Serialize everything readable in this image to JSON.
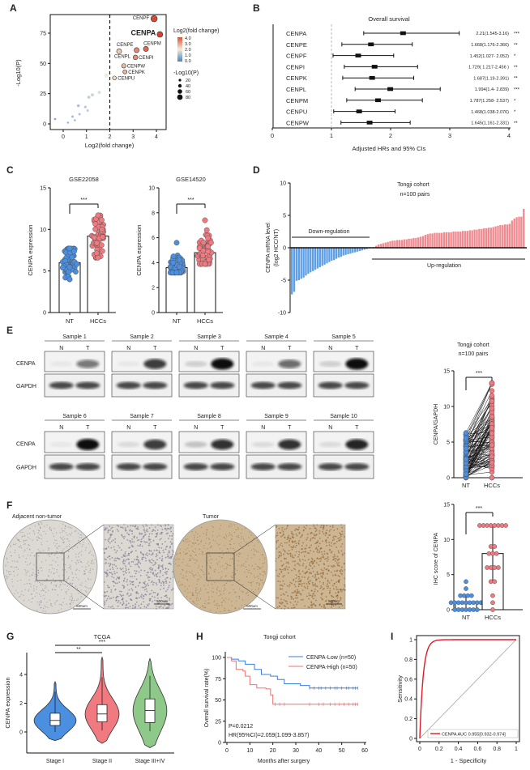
{
  "colors": {
    "blue": "#4a8fe0",
    "red": "#f07a80",
    "green": "#8fc98a",
    "km_low": "#3a7fe0",
    "km_high": "#f07070",
    "roc": "#e01a2a",
    "highlight": "#e0101e"
  },
  "panel_labels": [
    "A",
    "B",
    "C",
    "D",
    "E",
    "F",
    "G",
    "H",
    "I"
  ],
  "chart_data": [
    {
      "id": "A",
      "type": "scatter",
      "xlabel": "Log2(fold change)",
      "ylabel": "-Log10(P)",
      "xticks": [
        0,
        1,
        2,
        3,
        4
      ],
      "yticks": [
        0,
        25,
        50,
        75
      ],
      "threshold_x": 2,
      "color_legend": {
        "title": "Log2(fold change)",
        "labels": [
          "4.0",
          "3.0",
          "2.0",
          "1.0",
          "0.0"
        ]
      },
      "size_legend": {
        "title": "-Log10(P)",
        "labels": [
          "20",
          "40",
          "60",
          "80"
        ]
      },
      "points": [
        {
          "label": "CENPF",
          "x": 3.9,
          "y": 87
        },
        {
          "label": "CENPA",
          "x": 4.15,
          "y": 74,
          "highlight": true
        },
        {
          "label": "CENPM",
          "x": 3.55,
          "y": 62
        },
        {
          "label": "CENPE",
          "x": 3.15,
          "y": 61
        },
        {
          "label": "CENPL",
          "x": 2.4,
          "y": 60
        },
        {
          "label": "CENPI",
          "x": 3.1,
          "y": 55
        },
        {
          "label": "CENPW",
          "x": 2.6,
          "y": 48
        },
        {
          "label": "CENPK",
          "x": 2.65,
          "y": 43
        },
        {
          "label": "CENPU",
          "x": 2.2,
          "y": 38
        },
        {
          "x": 1.85,
          "y": 40
        },
        {
          "x": 1.55,
          "y": 26
        },
        {
          "x": 1.25,
          "y": 24
        },
        {
          "x": 1.1,
          "y": 22
        },
        {
          "x": 0.65,
          "y": 15
        },
        {
          "x": 0.95,
          "y": 14
        },
        {
          "x": 1.05,
          "y": 11
        },
        {
          "x": 0.7,
          "y": 8
        },
        {
          "x": 0.4,
          "y": 6
        },
        {
          "x": 0.5,
          "y": 3
        },
        {
          "x": -0.35,
          "y": 4
        },
        {
          "x": 0.2,
          "y": 1
        }
      ]
    },
    {
      "id": "B",
      "type": "forest",
      "title": "Overall survival",
      "xlabel": "Adjusted HRs and 95% CIs",
      "xticks": [
        0,
        1,
        2,
        3,
        4
      ],
      "reference": 1,
      "rows": [
        {
          "gene": "CENPA",
          "hr": 2.21,
          "lo": 1.545,
          "hi": 3.16,
          "text": "2.21(1.545-3.16)",
          "sig": "***"
        },
        {
          "gene": "CENPE",
          "hr": 1.668,
          "lo": 1.176,
          "hi": 2.366,
          "text": "1.668(1.176-2.366)",
          "sig": "**"
        },
        {
          "gene": "CENPF",
          "hr": 1.452,
          "lo": 1.027,
          "hi": 2.052,
          "text": "1.452(1.027- 2.052)",
          "sig": "*"
        },
        {
          "gene": "CENPI",
          "hr": 1.729,
          "lo": 1.217,
          "hi": 2.456,
          "text": "1.729( 1.217-2.456 )",
          "sig": "**"
        },
        {
          "gene": "CENPK",
          "hr": 1.687,
          "lo": 1.19,
          "hi": 2.391,
          "text": "1.687(1.19-2.391)",
          "sig": "**"
        },
        {
          "gene": "CENPL",
          "hr": 1.994,
          "lo": 1.4,
          "hi": 2.839,
          "text": "1.994(1.4- 2.839)",
          "sig": "***"
        },
        {
          "gene": "CENPM",
          "hr": 1.787,
          "lo": 1.258,
          "hi": 2.537,
          "text": "1.787(1.258- 2.537)",
          "sig": "*"
        },
        {
          "gene": "CENPU",
          "hr": 1.468,
          "lo": 1.038,
          "hi": 2.076,
          "text": "1.468(1.038-2.076)",
          "sig": "*"
        },
        {
          "gene": "CENPW",
          "hr": 1.645,
          "lo": 1.161,
          "hi": 2.331,
          "text": "1.645(1.161-2.331)",
          "sig": "**"
        }
      ]
    },
    {
      "id": "C1",
      "type": "bar_scatter",
      "title": "GSE22058",
      "ylabel": "CENPA expression",
      "yticks": [
        0,
        5,
        10,
        15
      ],
      "ylim": [
        0,
        15
      ],
      "categories": [
        "NT",
        "HCCs"
      ],
      "sig": "***",
      "means": [
        6.0,
        9.2
      ],
      "ranges": [
        [
          4.0,
          7.7
        ],
        [
          6.6,
          11.7
        ]
      ]
    },
    {
      "id": "C2",
      "type": "bar_scatter",
      "title": "GSE14520",
      "ylabel": "CENPA expression",
      "yticks": [
        0,
        2,
        4,
        6,
        8,
        10
      ],
      "ylim": [
        0,
        10
      ],
      "categories": [
        "NT",
        "HCCs"
      ],
      "sig": "***",
      "means": [
        3.6,
        4.8
      ],
      "ranges": [
        [
          3.2,
          5.6
        ],
        [
          3.9,
          7.4
        ]
      ]
    },
    {
      "id": "D",
      "type": "bar",
      "title": "Tongji cohort",
      "subtitle": "n=100 pairs",
      "ylabel": "CENPA mRNA level",
      "ylabel2": "(log2 HCC/NT)",
      "yticks": [
        -10,
        -5,
        0,
        5,
        10
      ],
      "ylim": [
        -10,
        10
      ],
      "annotations": [
        "Down-regulation",
        "Up-regulation"
      ],
      "values": [
        -7.2,
        -6.8,
        -5.1,
        -5.0,
        -4.8,
        -4.6,
        -4.3,
        -4.0,
        -3.8,
        -3.6,
        -3.4,
        -3.2,
        -3.0,
        -2.8,
        -2.6,
        -2.4,
        -2.2,
        -2.0,
        -1.9,
        -1.7,
        -1.5,
        -1.4,
        -1.2,
        -1.1,
        -1.0,
        -0.9,
        -0.8,
        -0.7,
        -0.6,
        -0.5,
        -0.4,
        -0.3,
        -0.2,
        -0.1,
        -0.05,
        0.1,
        0.3,
        0.5,
        0.6,
        0.7,
        0.8,
        0.9,
        1.0,
        1.1,
        1.1,
        1.2,
        1.2,
        1.2,
        1.3,
        1.3,
        1.4,
        1.4,
        1.5,
        1.5,
        1.6,
        1.7,
        1.8,
        2.0,
        2.1,
        2.2,
        2.2,
        2.3,
        2.3,
        2.3,
        2.3,
        2.4,
        2.4,
        2.4,
        2.4,
        2.5,
        2.5,
        2.5,
        2.5,
        2.6,
        2.6,
        2.6,
        2.7,
        2.7,
        2.8,
        2.8,
        2.9,
        2.9,
        3.0,
        3.0,
        3.1,
        3.1,
        3.2,
        3.3,
        3.4,
        3.5,
        3.5,
        3.6,
        3.6,
        3.7,
        4.2,
        4.5,
        4.7,
        4.8,
        4.8,
        6.0
      ]
    },
    {
      "id": "E_blot",
      "type": "western_blot",
      "rows": [
        "CENPA",
        "GAPDH"
      ],
      "lanes": [
        "N",
        "T"
      ],
      "samples": [
        {
          "name": "Sample 1",
          "cenpa": [
            0.05,
            0.55
          ]
        },
        {
          "name": "Sample 2",
          "cenpa": [
            0.05,
            0.8
          ]
        },
        {
          "name": "Sample 3",
          "cenpa": [
            0.15,
            1.0
          ]
        },
        {
          "name": "Sample 4",
          "cenpa": [
            0.05,
            0.6
          ]
        },
        {
          "name": "Sample 5",
          "cenpa": [
            0.15,
            1.0
          ]
        },
        {
          "name": "Sample 6",
          "cenpa": [
            0.05,
            1.0
          ]
        },
        {
          "name": "Sample 7",
          "cenpa": [
            0.1,
            0.8
          ]
        },
        {
          "name": "Sample 8",
          "cenpa": [
            0.2,
            0.85
          ]
        },
        {
          "name": "Sample 9",
          "cenpa": [
            0.1,
            0.85
          ]
        },
        {
          "name": "Sample 10",
          "cenpa": [
            0.1,
            0.9
          ]
        }
      ]
    },
    {
      "id": "E_paired",
      "type": "paired_scatter",
      "title": "Tongji cohort",
      "subtitle": "n=100 pairs",
      "ylabel": "CENPA/GAPDH",
      "yticks": [
        0,
        5,
        10,
        15
      ],
      "ylim": [
        0,
        15
      ],
      "categories": [
        "NT",
        "HCCs"
      ],
      "sig": "***",
      "ranges": [
        [
          0,
          6.3
        ],
        [
          0,
          13.3
        ]
      ]
    },
    {
      "id": "F_images",
      "type": "ihc",
      "labels": [
        "Adjacent non-tumor",
        "Tumor"
      ],
      "scale_bar": "500um"
    },
    {
      "id": "F_bar",
      "type": "bar_scatter",
      "ylabel": "IHC score of CENPA",
      "yticks": [
        0,
        5,
        10,
        15
      ],
      "ylim": [
        0,
        15
      ],
      "categories": [
        "NT",
        "HCCs"
      ],
      "sig": "***",
      "means": [
        1.0,
        8.0
      ],
      "values": [
        [
          0,
          0,
          0,
          0,
          0,
          0,
          0,
          1,
          1,
          1,
          1,
          1,
          1,
          1,
          1,
          1,
          2,
          2,
          2,
          2,
          3,
          4
        ],
        [
          12,
          12,
          12,
          12,
          12,
          12,
          12,
          12,
          9,
          9,
          8,
          8,
          8,
          6,
          6,
          6,
          6,
          4,
          4,
          2,
          1,
          0
        ]
      ]
    },
    {
      "id": "G",
      "type": "violin",
      "title": "TCGA",
      "ylabel": "CENPA expression",
      "yticks": [
        0,
        2,
        4
      ],
      "categories": [
        "Stage I",
        "Stage II",
        "Stage III+IV"
      ],
      "box": [
        {
          "q1": 0.45,
          "median": 0.8,
          "q3": 1.3,
          "min": 0,
          "max": 2.8,
          "vmin": -0.6,
          "vmax": 3.5
        },
        {
          "q1": 0.7,
          "median": 1.25,
          "q3": 1.9,
          "min": 0.1,
          "max": 3.8,
          "vmin": -0.8,
          "vmax": 5.2
        },
        {
          "q1": 0.65,
          "median": 1.5,
          "q3": 2.3,
          "min": 0.05,
          "max": 3.9,
          "vmin": -1.1,
          "vmax": 5.1
        }
      ],
      "comparisons": [
        {
          "from": 0,
          "to": 1,
          "sig": "**"
        },
        {
          "from": 0,
          "to": 2,
          "sig": "***"
        }
      ]
    },
    {
      "id": "H",
      "type": "line",
      "title": "Tongji cohort",
      "xlabel": "Months after surgery",
      "ylabel": "Overall survival rate(%)",
      "xticks": [
        0,
        10,
        20,
        30,
        40,
        50,
        60
      ],
      "yticks": [
        0,
        25,
        50,
        75,
        100
      ],
      "p_text": "P=0.0212",
      "hr_text": "HR(95%CI)=2.059(1.099-3.857)",
      "series": [
        {
          "name": "CENPA-Low (n=50)",
          "steps": [
            [
              0,
              100
            ],
            [
              2,
              98
            ],
            [
              5,
              96
            ],
            [
              8,
              92
            ],
            [
              12,
              86
            ],
            [
              15,
              80
            ],
            [
              19,
              78
            ],
            [
              22,
              74
            ],
            [
              25,
              69
            ],
            [
              31,
              69
            ],
            [
              32,
              67
            ],
            [
              36,
              64
            ],
            [
              57,
              64
            ]
          ],
          "censor": [
            36,
            38,
            40,
            41,
            43,
            45,
            47,
            48,
            50,
            52,
            53,
            55,
            56,
            57
          ]
        },
        {
          "name": "CENPA-High (n=50)",
          "steps": [
            [
              0,
              100
            ],
            [
              2,
              96
            ],
            [
              4,
              86
            ],
            [
              7,
              84
            ],
            [
              8,
              78
            ],
            [
              10,
              68
            ],
            [
              13,
              64
            ],
            [
              17,
              63
            ],
            [
              19,
              56
            ],
            [
              20,
              45
            ],
            [
              57,
              45
            ]
          ],
          "censor": [
            21,
            23,
            25,
            36,
            40,
            42,
            45,
            47,
            49,
            51,
            53,
            55,
            56,
            57
          ]
        }
      ]
    },
    {
      "id": "I",
      "type": "line",
      "xlabel": "1 - Specificity",
      "ylabel": "Sensitivity",
      "xticks": [
        0,
        0.2,
        0.4,
        0.6,
        0.8,
        1.0
      ],
      "yticks": [
        0,
        0.2,
        0.4,
        0.6,
        0.8,
        1.0
      ],
      "series": [
        {
          "name": "CENPA AUC 0.955[0.932-0.974]"
        }
      ]
    }
  ]
}
